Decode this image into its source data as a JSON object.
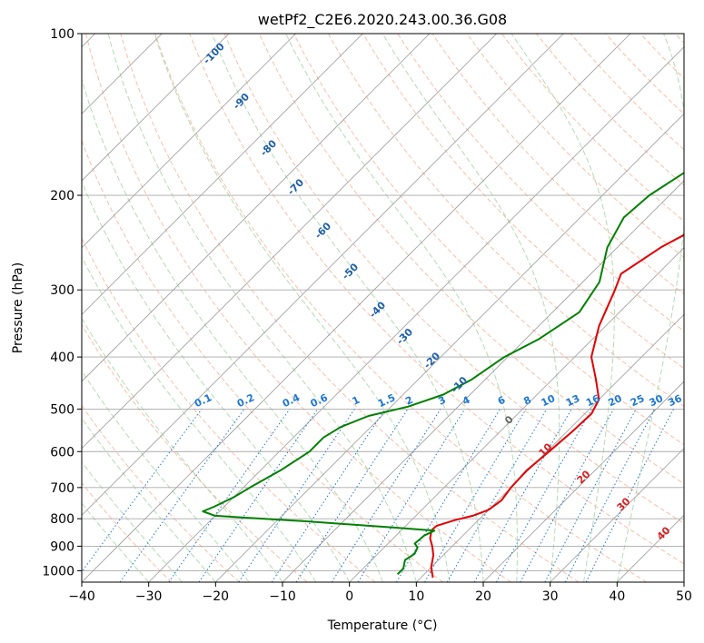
{
  "chart_data": {
    "type": "skew-t",
    "title": "wetPf2_C2E6.2020.243.00.36.G08",
    "xlabel": "Temperature (°C)",
    "ylabel": "Pressure (hPa)",
    "xlim": [
      -40,
      50
    ],
    "ylim": [
      1050,
      100
    ],
    "y_scale": "log",
    "x_ticks": [
      "−40",
      "−30",
      "−20",
      "−10",
      "0",
      "10",
      "20",
      "30",
      "40",
      "50"
    ],
    "x_tick_values": [
      -40,
      -30,
      -20,
      -10,
      0,
      10,
      20,
      30,
      40,
      50
    ],
    "y_ticks": [
      "100",
      "200",
      "300",
      "400",
      "500",
      "600",
      "700",
      "800",
      "900",
      "1000"
    ],
    "y_tick_values": [
      100,
      200,
      300,
      400,
      500,
      600,
      700,
      800,
      900,
      1000
    ],
    "grid": true,
    "colors": {
      "temperature": "#e00000",
      "dewpoint": "#008000",
      "isotherm": "#9a9a9a",
      "dry_adiabat": "#f7a888",
      "moist_adiabat": "#9fd29f",
      "mixing_ratio": "#1f77d4",
      "moist_label": "#1f5fa8",
      "dry_label": "#d62020"
    },
    "series": [
      {
        "key": "temperature",
        "points": [
          [
            11.8,
            1030
          ],
          [
            10.0,
            985
          ],
          [
            8.5,
            935
          ],
          [
            7.0,
            900
          ],
          [
            5.5,
            870
          ],
          [
            4.5,
            840
          ],
          [
            4.6,
            825
          ],
          [
            6.5,
            805
          ],
          [
            8.5,
            790
          ],
          [
            10.0,
            770
          ],
          [
            10.5,
            740
          ],
          [
            10.0,
            700
          ],
          [
            9.8,
            650
          ],
          [
            10.3,
            600
          ],
          [
            10.8,
            550
          ],
          [
            11.0,
            510
          ],
          [
            10.0,
            480
          ],
          [
            6.5,
            440
          ],
          [
            2.5,
            400
          ],
          [
            -1.0,
            350
          ],
          [
            -4.0,
            300
          ],
          [
            -5.5,
            280
          ],
          [
            -3.5,
            250
          ],
          [
            -1.0,
            230
          ],
          [
            0.5,
            210
          ],
          [
            2.0,
            190
          ],
          [
            4.0,
            170
          ],
          [
            8.0,
            155
          ],
          [
            11.0,
            140
          ],
          [
            11.5,
            130
          ],
          [
            12.5,
            118
          ],
          [
            13.5,
            110
          ],
          [
            13.5,
            100
          ]
        ]
      },
      {
        "key": "dewpoint",
        "points": [
          [
            6.0,
            1015
          ],
          [
            6.0,
            990
          ],
          [
            5.0,
            955
          ],
          [
            5.5,
            930
          ],
          [
            5.0,
            905
          ],
          [
            4.0,
            890
          ],
          [
            4.2,
            860
          ],
          [
            5.0,
            842
          ],
          [
            -2.0,
            830
          ],
          [
            -15.0,
            810
          ],
          [
            -30.0,
            790
          ],
          [
            -32.5,
            775
          ],
          [
            -31.5,
            760
          ],
          [
            -30.0,
            730
          ],
          [
            -29.0,
            700
          ],
          [
            -27.0,
            650
          ],
          [
            -25.5,
            600
          ],
          [
            -25.5,
            565
          ],
          [
            -24.5,
            540
          ],
          [
            -22.0,
            515
          ],
          [
            -17.5,
            495
          ],
          [
            -14.0,
            470
          ],
          [
            -12.0,
            440
          ],
          [
            -10.5,
            400
          ],
          [
            -8.0,
            370
          ],
          [
            -6.0,
            330
          ],
          [
            -7.5,
            290
          ],
          [
            -11.5,
            250
          ],
          [
            -13.5,
            220
          ],
          [
            -13.0,
            200
          ],
          [
            -11.0,
            180
          ],
          [
            -8.0,
            165
          ],
          [
            -10.0,
            145
          ],
          [
            -16.0,
            135
          ],
          [
            -13.0,
            125
          ],
          [
            -5.0,
            118
          ],
          [
            -2.0,
            110
          ],
          [
            1.5,
            100
          ]
        ]
      }
    ],
    "moist_adiabat_labels": [
      "-100",
      "-90",
      "-80",
      "-70",
      "-60",
      "-50",
      "-40",
      "-30",
      "-20",
      "-10"
    ],
    "mixing_ratio_labels": [
      "0.1",
      "0.2",
      "0.4",
      "0.6",
      "1",
      "1.5",
      "2",
      "3",
      "4",
      "6",
      "8",
      "10",
      "13",
      "16",
      "20",
      "25",
      "30",
      "36"
    ],
    "dry_adiabat_labels": [
      "0",
      "10",
      "20",
      "30",
      "40"
    ]
  }
}
